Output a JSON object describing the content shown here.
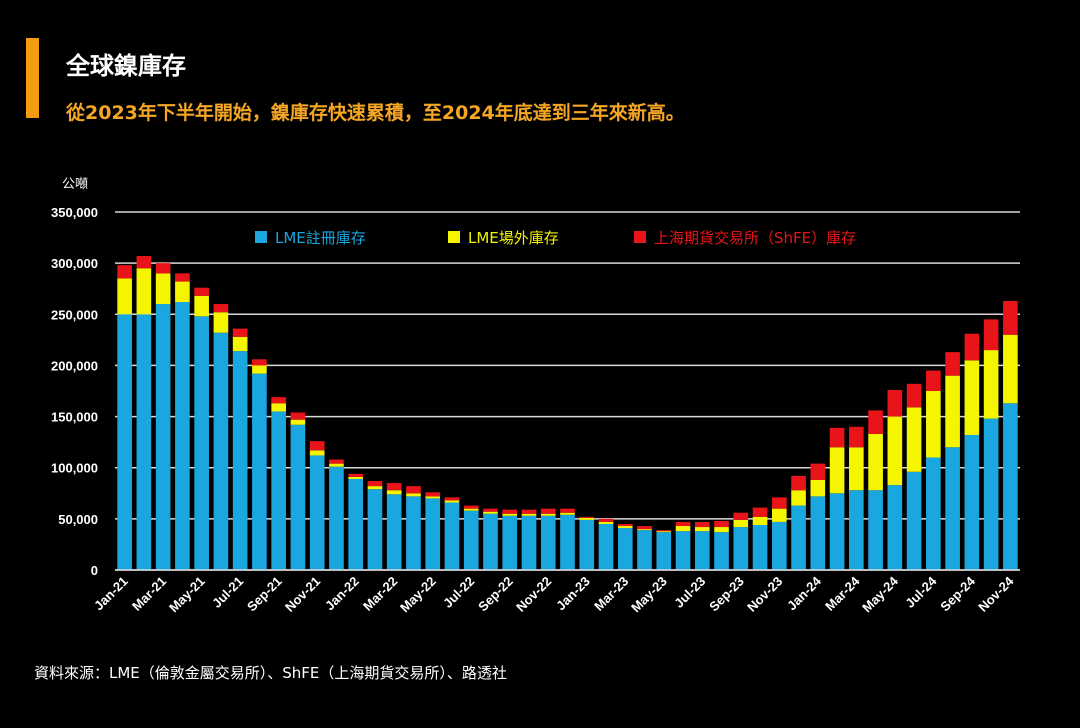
{
  "header": {
    "title": "全球鎳庫存",
    "subtitle": "從2023年下半年開始，鎳庫存快速累積，至2024年底達到三年來新高。"
  },
  "footer": {
    "source": "資料來源：LME（倫敦金屬交易所）、ShFE（上海期貨交易所）、路透社"
  },
  "colors": {
    "accent": "#f39c12",
    "lme": "#1aa7e0",
    "offwarrant": "#f5f500",
    "shfe": "#e8141a"
  },
  "chart_data": {
    "type": "bar",
    "stacked": true,
    "title": "全球鎳庫存",
    "ylabel": "公噸",
    "xlabel": "",
    "ylim": [
      0,
      350000
    ],
    "yticks": [
      0,
      50000,
      100000,
      150000,
      200000,
      250000,
      300000,
      350000
    ],
    "ytick_labels": [
      "0",
      "50,000",
      "100,000",
      "150,000",
      "200,000",
      "250,000",
      "300,000",
      "350,000"
    ],
    "grid": true,
    "legend_position": "top",
    "categories": [
      "Jan-21",
      "Feb-21",
      "Mar-21",
      "Apr-21",
      "May-21",
      "Jun-21",
      "Jul-21",
      "Aug-21",
      "Sep-21",
      "Oct-21",
      "Nov-21",
      "Dec-21",
      "Jan-22",
      "Feb-22",
      "Mar-22",
      "Apr-22",
      "May-22",
      "Jun-22",
      "Jul-22",
      "Aug-22",
      "Sep-22",
      "Oct-22",
      "Nov-22",
      "Dec-22",
      "Jan-23",
      "Feb-23",
      "Mar-23",
      "Apr-23",
      "May-23",
      "Jun-23",
      "Jul-23",
      "Aug-23",
      "Sep-23",
      "Oct-23",
      "Nov-23",
      "Dec-23",
      "Jan-24",
      "Feb-24",
      "Mar-24",
      "Apr-24",
      "May-24",
      "Jun-24",
      "Jul-24",
      "Aug-24",
      "Sep-24",
      "Oct-24",
      "Nov-24"
    ],
    "x_tick_labels": [
      "Jan-21",
      "Mar-21",
      "May-21",
      "Jul-21",
      "Sep-21",
      "Nov-21",
      "Jan-22",
      "Mar-22",
      "May-22",
      "Jul-22",
      "Sep-22",
      "Nov-22",
      "Jan-23",
      "Mar-23",
      "May-23",
      "Jul-23",
      "Sep-23",
      "Nov-23",
      "Jan-24",
      "Mar-24",
      "May-24",
      "Jul-24",
      "Sep-24",
      "Nov-24"
    ],
    "series": [
      {
        "name": "LME註冊庫存",
        "color": "#1aa7e0",
        "values": [
          250000,
          250000,
          260000,
          262000,
          248000,
          232000,
          214000,
          192000,
          155000,
          142000,
          112000,
          101000,
          89000,
          79000,
          74000,
          72000,
          70000,
          66000,
          58000,
          55000,
          53000,
          53000,
          53000,
          54000,
          49000,
          45000,
          41000,
          39000,
          37000,
          38000,
          38000,
          37000,
          42000,
          44000,
          47000,
          63000,
          72000,
          75000,
          78000,
          78000,
          83000,
          96000,
          110000,
          120000,
          132000,
          148000,
          163000
        ]
      },
      {
        "name": "LME場外庫存",
        "color": "#f5f500",
        "values": [
          35000,
          45000,
          30000,
          20000,
          20000,
          20000,
          14000,
          8000,
          8000,
          5000,
          5000,
          3000,
          2000,
          3000,
          4000,
          3000,
          2000,
          2000,
          2000,
          2000,
          2000,
          2000,
          2000,
          2000,
          2000,
          2000,
          2000,
          1000,
          1000,
          5000,
          4000,
          5000,
          7000,
          8000,
          13000,
          15000,
          16000,
          45000,
          42000,
          55000,
          67000,
          63000,
          65000,
          70000,
          73000,
          67000,
          67000
        ]
      },
      {
        "name": "上海期貨交易所（ShFE）庫存",
        "color": "#e8141a",
        "values": [
          13000,
          12000,
          10000,
          8000,
          8000,
          8000,
          8000,
          6000,
          6000,
          7000,
          9000,
          4000,
          3000,
          5000,
          7000,
          7000,
          4000,
          3000,
          3000,
          3000,
          4000,
          4000,
          5000,
          4000,
          1000,
          3000,
          2000,
          3000,
          1000,
          4000,
          5000,
          6000,
          7000,
          9000,
          11000,
          14000,
          16000,
          19000,
          20000,
          23000,
          26000,
          23000,
          20000,
          23000,
          26000,
          30000,
          33000
        ]
      }
    ]
  }
}
